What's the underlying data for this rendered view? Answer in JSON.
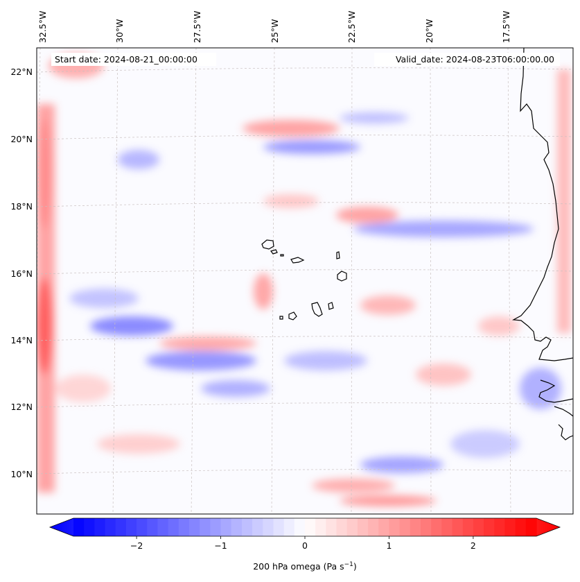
{
  "header": {
    "start_date": "Start date: 2024-08-21_00:00:00",
    "valid_date": "Valid_date: 2024-08-23T06:00:00.00"
  },
  "map": {
    "lon_ticks": [
      "32.5°W",
      "30°W",
      "27.5°W",
      "25°W",
      "22.5°W",
      "20°W",
      "17.5°W"
    ],
    "lat_ticks": [
      "22°N",
      "20°N",
      "18°N",
      "16°N",
      "14°N",
      "12°N",
      "10°N"
    ],
    "lon_values": [
      -32.5,
      -30,
      -27.5,
      -25,
      -22.5,
      -20,
      -17.5
    ],
    "lat_values": [
      22,
      20,
      18,
      16,
      14,
      12,
      10
    ],
    "extent": {
      "lon_min": -33.1,
      "lon_max": -15.7,
      "lat_min": 8.9,
      "lat_max": 22.7
    },
    "gridlines": true,
    "field": "200 hPa omega",
    "colors": {
      "negative": "#0000ff",
      "zero": "#ffffff",
      "positive": "#ff0000",
      "coast": "#000000"
    }
  },
  "colorbar": {
    "label_main": "200 hPa omega (Pa s",
    "label_exp": "−1",
    "label_close": ")",
    "tick_labels": [
      "−2",
      "−1",
      "0",
      "1",
      "2"
    ],
    "tick_values": [
      -2,
      -1,
      0,
      1,
      2
    ],
    "range": [
      -2.75,
      2.75
    ],
    "extend": "both",
    "cmap": "bwr"
  }
}
